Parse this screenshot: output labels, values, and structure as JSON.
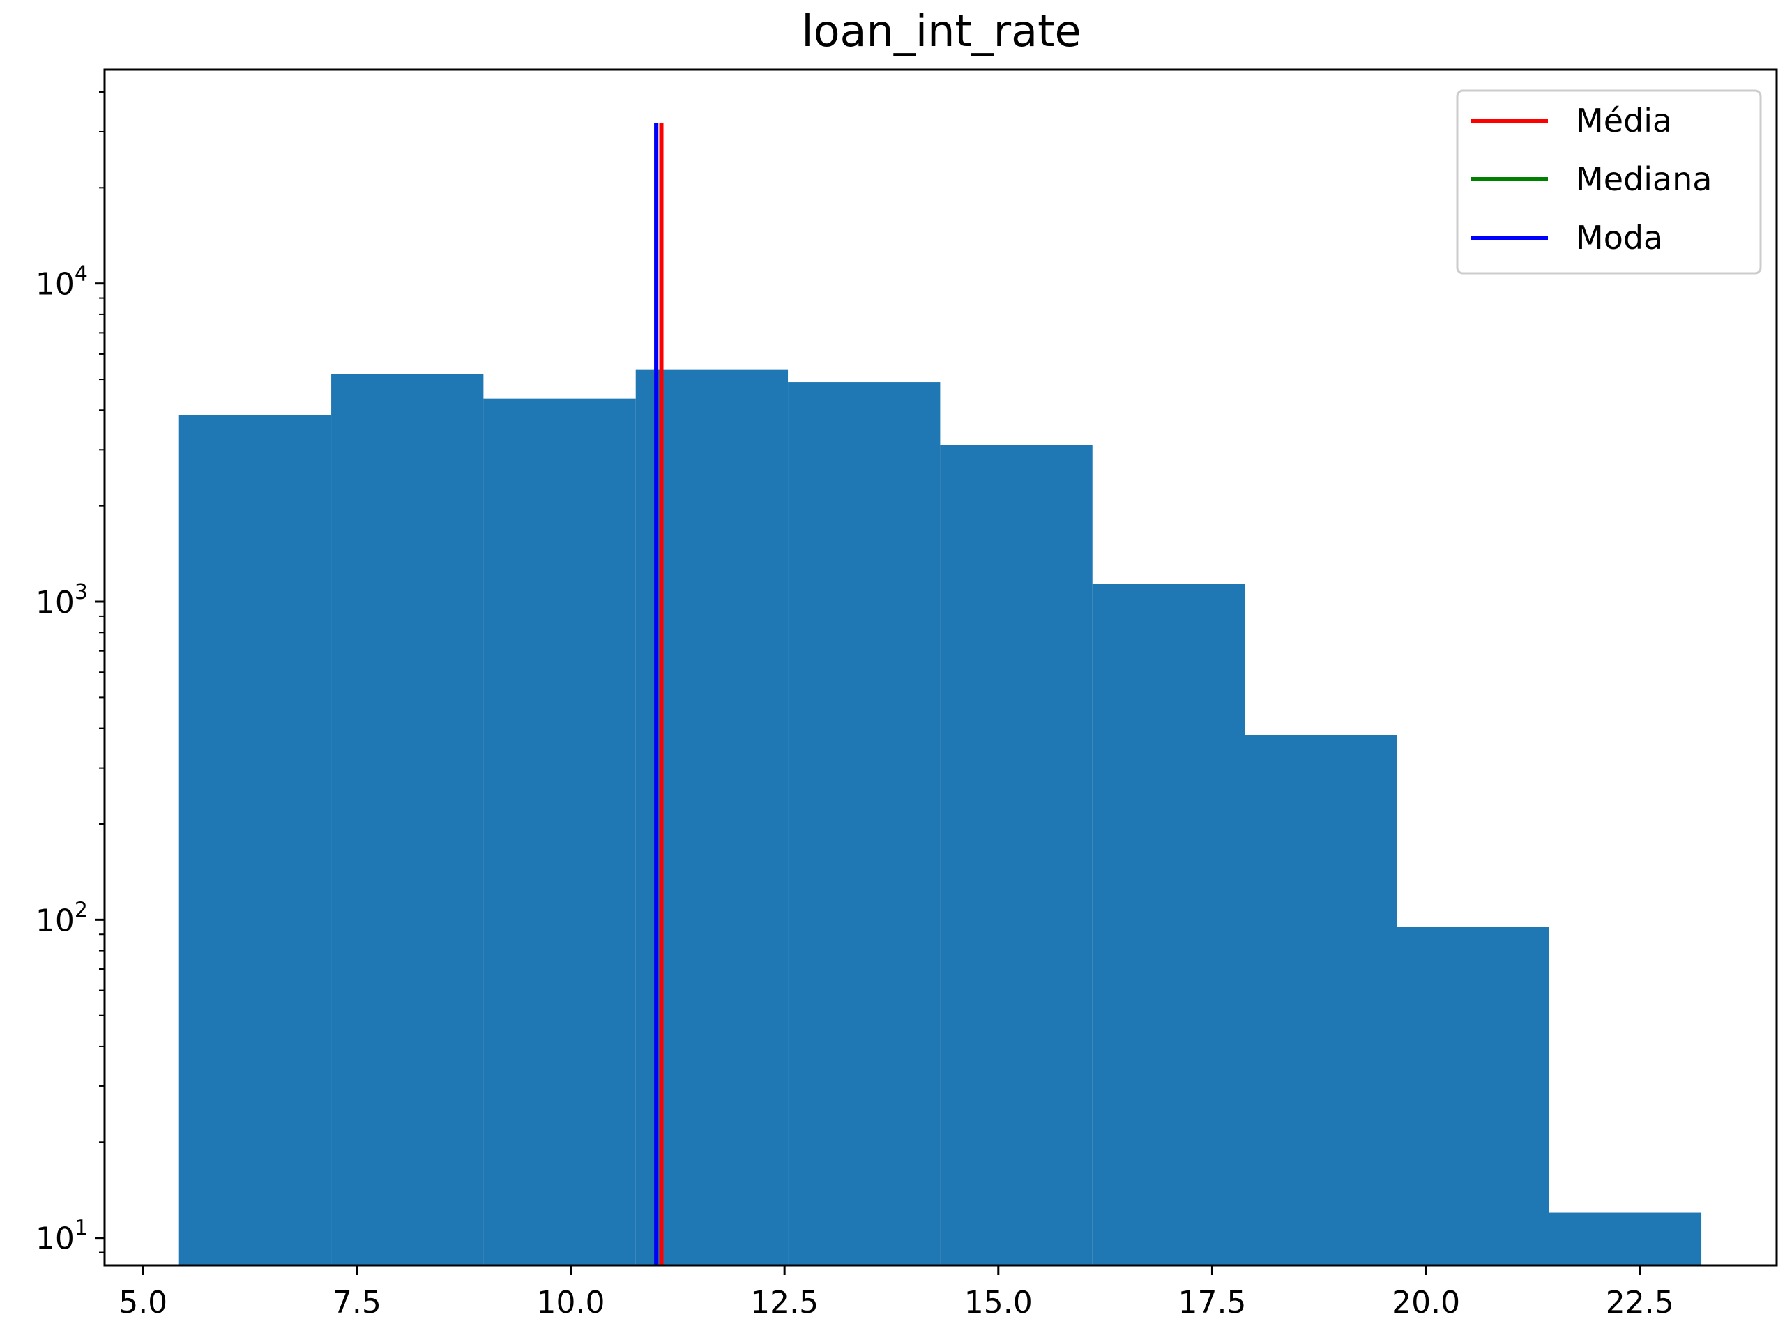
{
  "chart_data": {
    "type": "bar",
    "title": "loan_int_rate",
    "xlabel": "",
    "ylabel": "",
    "yscale": "log",
    "xlim": [
      4.55,
      24.1
    ],
    "ylim": [
      8.2,
      47000
    ],
    "grid": false,
    "legend_position": "top-right",
    "bins": [
      {
        "x0": 5.42,
        "x1": 7.2,
        "count": 3850
      },
      {
        "x0": 7.2,
        "x1": 8.98,
        "count": 5200
      },
      {
        "x0": 8.98,
        "x1": 10.76,
        "count": 4350
      },
      {
        "x0": 10.76,
        "x1": 12.54,
        "count": 5350
      },
      {
        "x0": 12.54,
        "x1": 14.32,
        "count": 4900
      },
      {
        "x0": 14.32,
        "x1": 16.1,
        "count": 3100
      },
      {
        "x0": 16.1,
        "x1": 17.88,
        "count": 1140
      },
      {
        "x0": 17.88,
        "x1": 19.66,
        "count": 380
      },
      {
        "x0": 19.66,
        "x1": 21.44,
        "count": 95
      },
      {
        "x0": 21.44,
        "x1": 23.22,
        "count": 12
      }
    ],
    "x_ticks": [
      {
        "value": 5.0,
        "label": "5.0"
      },
      {
        "value": 7.5,
        "label": "7.5"
      },
      {
        "value": 10.0,
        "label": "10.0"
      },
      {
        "value": 12.5,
        "label": "12.5"
      },
      {
        "value": 15.0,
        "label": "15.0"
      },
      {
        "value": 17.5,
        "label": "17.5"
      },
      {
        "value": 20.0,
        "label": "20.0"
      },
      {
        "value": 22.5,
        "label": "22.5"
      }
    ],
    "y_ticks": [
      {
        "value": 10,
        "base": "10",
        "exp": "1"
      },
      {
        "value": 100,
        "base": "10",
        "exp": "2"
      },
      {
        "value": 1000,
        "base": "10",
        "exp": "3"
      },
      {
        "value": 10000,
        "base": "10",
        "exp": "4"
      }
    ],
    "vlines": [
      {
        "name": "Média",
        "x": 11.06,
        "y_top": 32000,
        "color": "#ff0000"
      },
      {
        "name": "Mediana",
        "x": 11.0,
        "y_top": 32000,
        "color": "#008000"
      },
      {
        "name": "Moda",
        "x": 11.0,
        "y_top": 32000,
        "color": "#0000ff"
      }
    ],
    "bar_color": "#1f77b4"
  }
}
